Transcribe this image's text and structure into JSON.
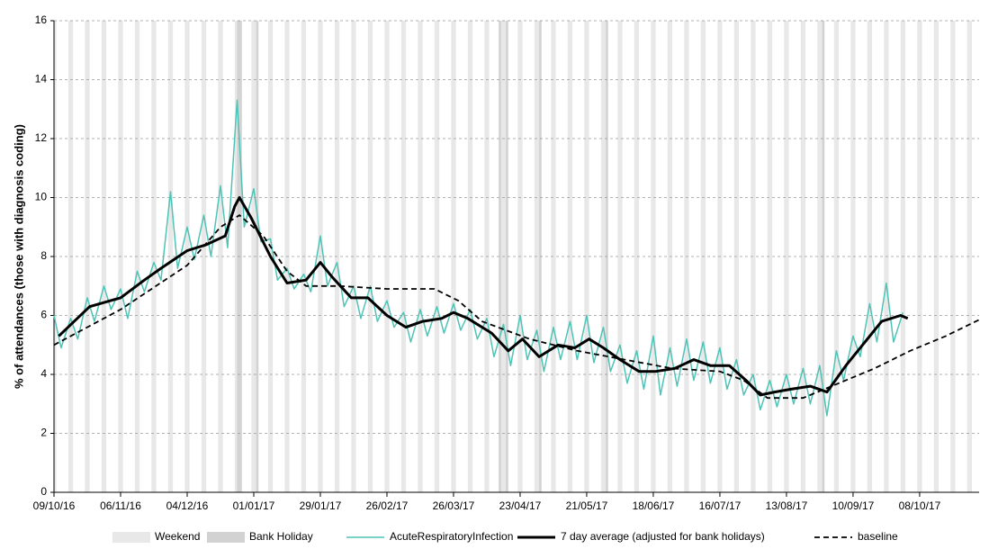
{
  "chart_data": {
    "type": "line",
    "y_label": "% of attendances (those with diagnosis coding)",
    "weekend_label": "Weekend",
    "bank_holiday_label": "Bank Holiday",
    "bank_holidays": [
      77,
      78,
      85,
      187,
      190,
      204,
      232,
      323
    ],
    "xlim": [
      0,
      389
    ],
    "xticks": [
      {
        "value": 0,
        "label": "09/10/16"
      },
      {
        "value": 28,
        "label": "06/11/16"
      },
      {
        "value": 56,
        "label": "04/12/16"
      },
      {
        "value": 84,
        "label": "01/01/17"
      },
      {
        "value": 112,
        "label": "29/01/17"
      },
      {
        "value": 140,
        "label": "26/02/17"
      },
      {
        "value": 168,
        "label": "26/03/17"
      },
      {
        "value": 196,
        "label": "23/04/17"
      },
      {
        "value": 224,
        "label": "21/05/17"
      },
      {
        "value": 252,
        "label": "18/06/17"
      },
      {
        "value": 280,
        "label": "16/07/17"
      },
      {
        "value": 308,
        "label": "13/08/17"
      },
      {
        "value": 336,
        "label": "10/09/17"
      },
      {
        "value": 364,
        "label": "08/10/17"
      }
    ],
    "ylim": [
      0,
      16
    ],
    "yticks": [
      0,
      2,
      4,
      6,
      8,
      10,
      12,
      14,
      16
    ],
    "grid": true,
    "series": [
      {
        "name": "AcuteRespiratoryInfection",
        "color": "#4fc3b6",
        "width": 1.5,
        "dash": false,
        "x": [
          0,
          3,
          7,
          10,
          14,
          17,
          21,
          24,
          28,
          31,
          35,
          38,
          42,
          45,
          49,
          52,
          56,
          59,
          63,
          66,
          70,
          73,
          77,
          80,
          84,
          87,
          91,
          94,
          98,
          101,
          105,
          108,
          112,
          115,
          119,
          122,
          126,
          129,
          133,
          136,
          140,
          143,
          147,
          150,
          154,
          157,
          161,
          164,
          168,
          171,
          175,
          178,
          182,
          185,
          189,
          192,
          196,
          199,
          203,
          206,
          210,
          213,
          217,
          220,
          224,
          227,
          231,
          234,
          238,
          241,
          245,
          248,
          252,
          255,
          259,
          262,
          266,
          269,
          273,
          276,
          280,
          283,
          287,
          290,
          294,
          297,
          301,
          304,
          308,
          311,
          315,
          318,
          322,
          325,
          329,
          332,
          336,
          339,
          343,
          346,
          350,
          353,
          357
        ],
        "values": [
          6.0,
          4.9,
          5.9,
          5.2,
          6.6,
          5.8,
          7.0,
          6.2,
          6.9,
          5.9,
          7.5,
          6.8,
          7.8,
          7.2,
          10.2,
          7.6,
          9.0,
          7.9,
          9.4,
          8.0,
          10.4,
          8.3,
          13.3,
          9.0,
          10.3,
          8.5,
          8.6,
          7.2,
          7.6,
          6.9,
          7.4,
          6.8,
          8.7,
          7.0,
          7.8,
          6.3,
          7.0,
          5.9,
          7.0,
          5.8,
          6.5,
          5.6,
          6.1,
          5.1,
          6.2,
          5.3,
          6.3,
          5.4,
          6.4,
          5.5,
          6.2,
          5.2,
          5.9,
          4.6,
          5.7,
          4.3,
          6.0,
          4.5,
          5.5,
          4.1,
          5.6,
          4.5,
          5.8,
          4.5,
          6.0,
          4.4,
          5.6,
          4.1,
          5.0,
          3.7,
          4.8,
          3.5,
          5.3,
          3.3,
          4.9,
          3.6,
          5.2,
          3.8,
          5.1,
          3.7,
          4.9,
          3.5,
          4.5,
          3.3,
          4.0,
          2.8,
          3.8,
          2.9,
          4.0,
          3.0,
          4.2,
          3.0,
          4.3,
          2.6,
          4.8,
          3.8,
          5.3,
          4.6,
          6.4,
          5.1,
          7.1,
          5.1,
          6.1
        ]
      },
      {
        "name": "7 day average (adjusted for bank holidays)",
        "color": "#000000",
        "width": 3,
        "dash": false,
        "x": [
          2,
          15,
          28,
          38,
          45,
          56,
          64,
          72,
          76,
          78,
          83,
          91,
          98,
          106,
          112,
          117,
          125,
          132,
          140,
          148,
          155,
          163,
          168,
          174,
          184,
          191,
          197,
          204,
          212,
          219,
          225,
          231,
          238,
          246,
          253,
          261,
          269,
          276,
          284,
          291,
          297,
          303,
          310,
          318,
          325,
          333,
          341,
          348,
          356,
          359
        ],
        "values": [
          5.3,
          6.3,
          6.6,
          7.2,
          7.6,
          8.2,
          8.4,
          8.7,
          9.7,
          10.0,
          9.3,
          8.0,
          7.1,
          7.2,
          7.8,
          7.3,
          6.6,
          6.6,
          6.0,
          5.6,
          5.8,
          5.9,
          6.1,
          5.9,
          5.4,
          4.8,
          5.2,
          4.6,
          5.0,
          4.9,
          5.2,
          4.9,
          4.5,
          4.1,
          4.1,
          4.2,
          4.5,
          4.3,
          4.3,
          3.8,
          3.3,
          3.4,
          3.5,
          3.6,
          3.4,
          4.3,
          5.1,
          5.8,
          6.0,
          5.9
        ]
      },
      {
        "name": "baseline",
        "color": "#000000",
        "width": 1.8,
        "dash": true,
        "x": [
          0,
          28,
          56,
          70,
          78,
          88,
          98,
          106,
          120,
          140,
          160,
          170,
          180,
          200,
          220,
          240,
          260,
          280,
          290,
          300,
          315,
          330,
          345,
          360,
          375,
          389
        ],
        "values": [
          5.0,
          6.2,
          7.7,
          9.0,
          9.4,
          8.7,
          7.5,
          7.0,
          7.0,
          6.9,
          6.9,
          6.5,
          5.8,
          5.2,
          4.8,
          4.5,
          4.2,
          4.1,
          3.8,
          3.2,
          3.2,
          3.7,
          4.2,
          4.8,
          5.3,
          5.85
        ]
      }
    ]
  }
}
